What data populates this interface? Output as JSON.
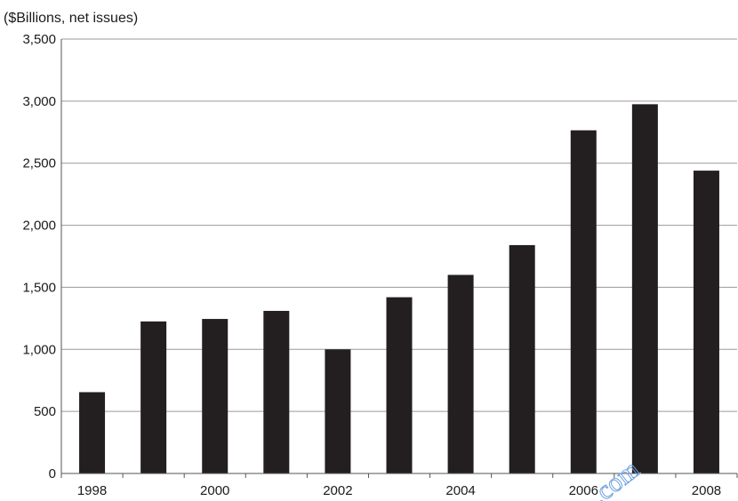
{
  "chart_data": {
    "type": "bar",
    "title": "",
    "unit_label": "($Billions, net issues)",
    "xlabel": "",
    "ylabel": "",
    "categories": [
      "1998",
      "1999",
      "2000",
      "2001",
      "2002",
      "2003",
      "2004",
      "2005",
      "2006",
      "2007",
      "2008"
    ],
    "x_tick_labels": [
      "1998",
      "2000",
      "2002",
      "2004",
      "2006",
      "2008"
    ],
    "values": [
      655,
      1225,
      1245,
      1310,
      1000,
      1420,
      1600,
      1840,
      2765,
      2975,
      2440
    ],
    "ylim": [
      0,
      3500
    ],
    "y_ticks": [
      0,
      500,
      1000,
      1500,
      2000,
      2500,
      3000,
      3500
    ],
    "y_tick_labels": [
      "0",
      "500",
      "1,000",
      "1,500",
      "2,000",
      "2,500",
      "3,000",
      "3,500"
    ],
    "grid": true,
    "legend": "none",
    "bar_color": "#231f20",
    "watermark": ".com"
  }
}
